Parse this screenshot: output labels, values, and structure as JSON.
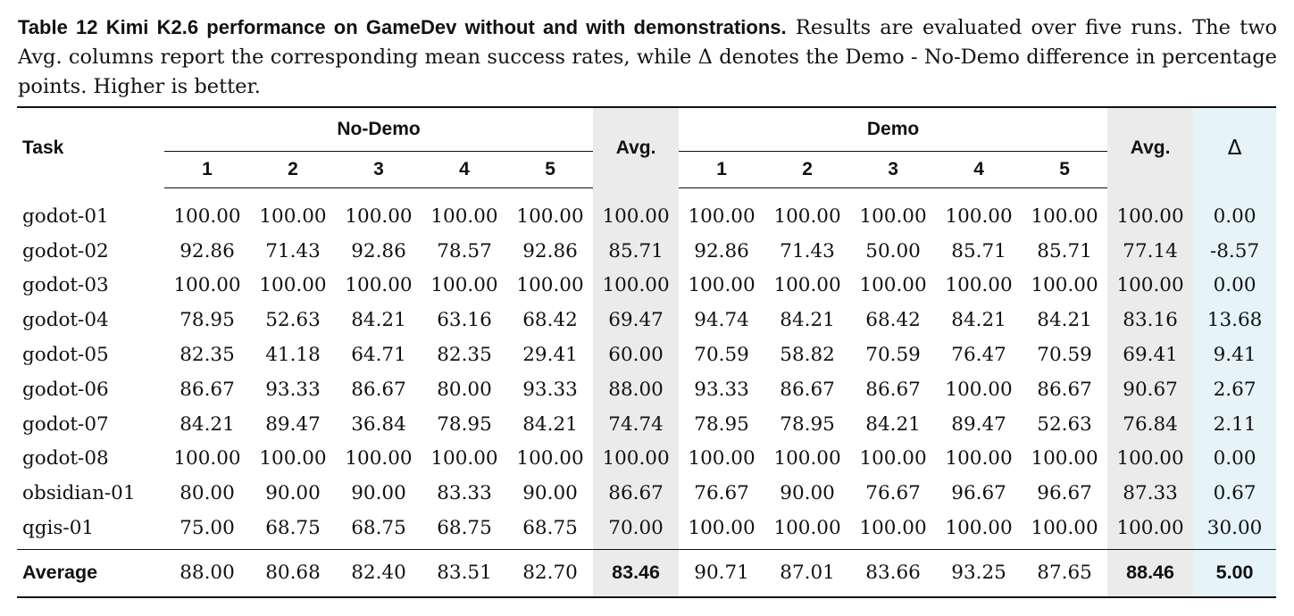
{
  "caption": {
    "label": "Table 12  Kimi K2.6 performance on GameDev without and with demonstrations.",
    "text": " Results are evaluated over five runs. The two Avg. columns report the corresponding mean success rates, while Δ denotes the Demo - No-Demo difference in percentage points. Higher is better."
  },
  "table": {
    "task_header": "Task",
    "nodemo_header": "No-Demo",
    "demo_header": "Demo",
    "avg_header": "Avg.",
    "delta_header": "Δ",
    "run_numbers": [
      "1",
      "2",
      "3",
      "4",
      "5"
    ],
    "rows": [
      {
        "task": "godot-01",
        "nodemo": [
          "100.00",
          "100.00",
          "100.00",
          "100.00",
          "100.00"
        ],
        "nodemo_avg": "100.00",
        "demo": [
          "100.00",
          "100.00",
          "100.00",
          "100.00",
          "100.00"
        ],
        "demo_avg": "100.00",
        "delta": "0.00"
      },
      {
        "task": "godot-02",
        "nodemo": [
          "92.86",
          "71.43",
          "92.86",
          "78.57",
          "92.86"
        ],
        "nodemo_avg": "85.71",
        "demo": [
          "92.86",
          "71.43",
          "50.00",
          "85.71",
          "85.71"
        ],
        "demo_avg": "77.14",
        "delta": "-8.57"
      },
      {
        "task": "godot-03",
        "nodemo": [
          "100.00",
          "100.00",
          "100.00",
          "100.00",
          "100.00"
        ],
        "nodemo_avg": "100.00",
        "demo": [
          "100.00",
          "100.00",
          "100.00",
          "100.00",
          "100.00"
        ],
        "demo_avg": "100.00",
        "delta": "0.00"
      },
      {
        "task": "godot-04",
        "nodemo": [
          "78.95",
          "52.63",
          "84.21",
          "63.16",
          "68.42"
        ],
        "nodemo_avg": "69.47",
        "demo": [
          "94.74",
          "84.21",
          "68.42",
          "84.21",
          "84.21"
        ],
        "demo_avg": "83.16",
        "delta": "13.68"
      },
      {
        "task": "godot-05",
        "nodemo": [
          "82.35",
          "41.18",
          "64.71",
          "82.35",
          "29.41"
        ],
        "nodemo_avg": "60.00",
        "demo": [
          "70.59",
          "58.82",
          "70.59",
          "76.47",
          "70.59"
        ],
        "demo_avg": "69.41",
        "delta": "9.41"
      },
      {
        "task": "godot-06",
        "nodemo": [
          "86.67",
          "93.33",
          "86.67",
          "80.00",
          "93.33"
        ],
        "nodemo_avg": "88.00",
        "demo": [
          "93.33",
          "86.67",
          "86.67",
          "100.00",
          "86.67"
        ],
        "demo_avg": "90.67",
        "delta": "2.67"
      },
      {
        "task": "godot-07",
        "nodemo": [
          "84.21",
          "89.47",
          "36.84",
          "78.95",
          "84.21"
        ],
        "nodemo_avg": "74.74",
        "demo": [
          "78.95",
          "78.95",
          "84.21",
          "89.47",
          "52.63"
        ],
        "demo_avg": "76.84",
        "delta": "2.11"
      },
      {
        "task": "godot-08",
        "nodemo": [
          "100.00",
          "100.00",
          "100.00",
          "100.00",
          "100.00"
        ],
        "nodemo_avg": "100.00",
        "demo": [
          "100.00",
          "100.00",
          "100.00",
          "100.00",
          "100.00"
        ],
        "demo_avg": "100.00",
        "delta": "0.00"
      },
      {
        "task": "obsidian-01",
        "nodemo": [
          "80.00",
          "90.00",
          "90.00",
          "83.33",
          "90.00"
        ],
        "nodemo_avg": "86.67",
        "demo": [
          "76.67",
          "90.00",
          "76.67",
          "96.67",
          "96.67"
        ],
        "demo_avg": "87.33",
        "delta": "0.67"
      },
      {
        "task": "qgis-01",
        "nodemo": [
          "75.00",
          "68.75",
          "68.75",
          "68.75",
          "68.75"
        ],
        "nodemo_avg": "70.00",
        "demo": [
          "100.00",
          "100.00",
          "100.00",
          "100.00",
          "100.00"
        ],
        "demo_avg": "100.00",
        "delta": "30.00"
      }
    ],
    "average": {
      "task": "Average",
      "nodemo": [
        "88.00",
        "80.68",
        "82.40",
        "83.51",
        "82.70"
      ],
      "nodemo_avg": "83.46",
      "demo": [
        "90.71",
        "87.01",
        "83.66",
        "93.25",
        "87.65"
      ],
      "demo_avg": "88.46",
      "delta": "5.00"
    }
  }
}
